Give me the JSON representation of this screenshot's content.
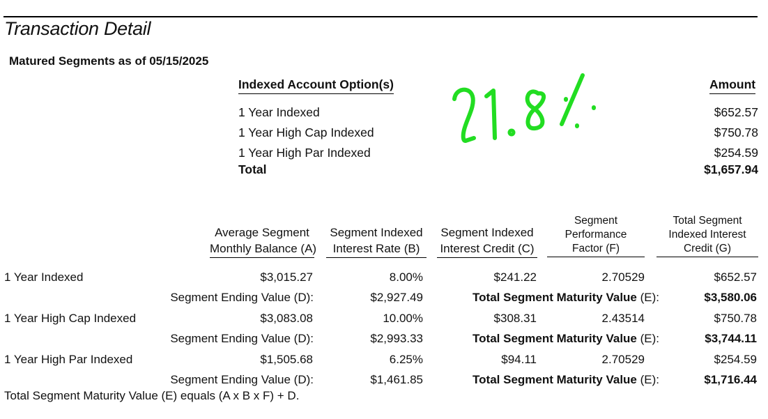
{
  "title": "Transaction Detail",
  "subtitle": "Matured Segments as of 05/15/2025",
  "options_header": "Indexed Account Option(s)",
  "amount_header": "Amount",
  "options": [
    {
      "name": "1 Year Indexed",
      "amount": "$652.57"
    },
    {
      "name": "1 Year High Cap Indexed",
      "amount": "$750.78"
    },
    {
      "name": "1 Year High Par Indexed",
      "amount": "$254.59"
    }
  ],
  "total_label": "Total",
  "total_amount": "$1,657.94",
  "handwritten": "21.8%",
  "columns": {
    "a": [
      "Average Segment",
      "Monthly Balance (A)"
    ],
    "b": [
      "Segment Indexed",
      "Interest Rate (B)"
    ],
    "c": [
      "Segment Indexed",
      "Interest Credit (C)"
    ],
    "f": [
      "Segment",
      "Performance",
      "Factor (F)"
    ],
    "g": [
      "Total Segment",
      "Indexed Interest",
      "Credit (G)"
    ]
  },
  "ending_label": "Segment Ending Value (D):",
  "maturity_label_bold": "Total Segment Maturity Value",
  "maturity_label_suffix": " (E):",
  "segments": [
    {
      "name": "1 Year Indexed",
      "a": "$3,015.27",
      "b": "8.00%",
      "c": "$241.22",
      "f": "2.70529",
      "g": "$652.57",
      "d": "$2,927.49",
      "e": "$3,580.06"
    },
    {
      "name": "1 Year High Cap Indexed",
      "a": "$3,083.08",
      "b": "10.00%",
      "c": "$308.31",
      "f": "2.43514",
      "g": "$750.78",
      "d": "$2,993.33",
      "e": "$3,744.11"
    },
    {
      "name": "1 Year High Par Indexed",
      "a": "$1,505.68",
      "b": "6.25%",
      "c": "$94.11",
      "f": "2.70529",
      "g": "$254.59",
      "d": "$1,461.85",
      "e": "$1,716.44"
    }
  ],
  "footnote": "Total Segment Maturity Value (E) equals (A x B x F) + D."
}
